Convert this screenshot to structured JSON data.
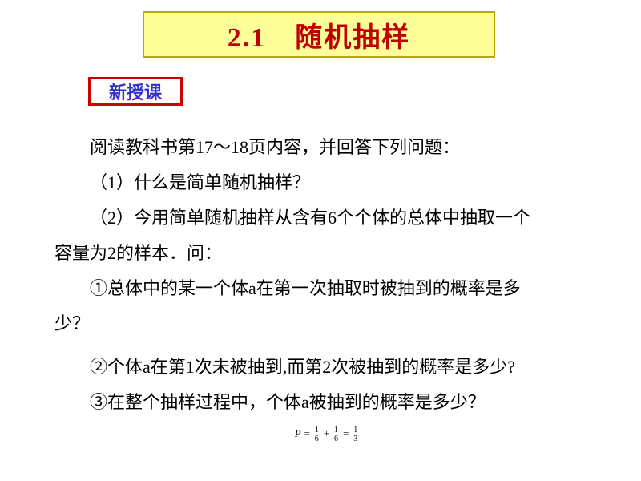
{
  "title": {
    "text": "2.1　随机抽样",
    "fontsize": 34,
    "color": "#c00000",
    "background": "#ffff99",
    "border_color": "#b8a800"
  },
  "badge": {
    "text": "新授课",
    "fontsize": 22,
    "color": "#3333cc",
    "background": "#ffffff",
    "border_color": "#cc0000"
  },
  "body": {
    "fontsize": 22,
    "color": "#000000",
    "lines": {
      "intro": "阅读教科书第17～18页内容，并回答下列问题：",
      "q1": "（1）什么是简单随机抽样？",
      "q2a": "（2）今用简单随机抽样从含有6个个体的总体中抽取一个",
      "q2b": "容量为2的样本．问：",
      "s1a": "①总体中的某一个体a在第一次抽取时被抽到的概率是多",
      "s1b": "少？",
      "s2": "②个体a在第1次未被抽到,而第2次被抽到的概率是多少?",
      "s3": "③在整个抽样过程中，个体a被抽到的概率是多少？"
    }
  },
  "formula": {
    "lhs": "P",
    "eq": "=",
    "t1_num": "1",
    "t1_den": "6",
    "plus": "+",
    "t2_num": "1",
    "t2_den": "6",
    "t3_num": "1",
    "t3_den": "3"
  }
}
